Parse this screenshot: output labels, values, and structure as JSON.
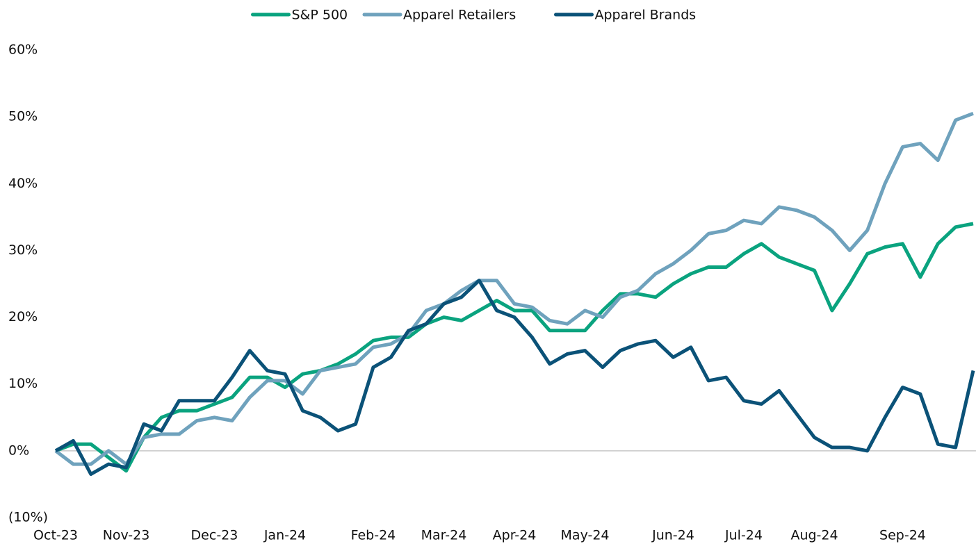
{
  "chart_data": {
    "type": "line",
    "categories": [
      "Oct-23",
      null,
      null,
      null,
      "Nov-23",
      null,
      null,
      null,
      null,
      "Dec-23",
      null,
      null,
      null,
      "Jan-24",
      null,
      null,
      null,
      null,
      "Feb-24",
      null,
      null,
      null,
      "Mar-24",
      null,
      null,
      null,
      "Apr-24",
      null,
      null,
      null,
      "May-24",
      null,
      null,
      null,
      null,
      "Jun-24",
      null,
      null,
      null,
      "Jul-24",
      null,
      null,
      null,
      "Aug-24",
      null,
      null,
      null,
      null,
      "Sep-24",
      null,
      null,
      null,
      null
    ],
    "series": [
      {
        "name": "S&P 500",
        "color": "#0aa37f",
        "values": [
          0,
          1,
          1,
          -1,
          -3,
          2,
          5,
          6,
          6,
          7,
          8,
          11,
          11,
          9.5,
          11.5,
          12,
          13,
          14.5,
          16.5,
          17,
          17,
          19,
          20,
          19.5,
          21,
          22.5,
          21,
          21,
          18,
          18,
          18,
          21,
          23.5,
          23.5,
          23,
          25,
          26.5,
          27.5,
          27.5,
          29.5,
          31,
          29,
          28,
          27,
          21,
          25,
          29.5,
          30.5,
          31,
          26,
          31,
          33.5,
          34
        ]
      },
      {
        "name": "Apparel Retailers",
        "color": "#6fa2bd",
        "values": [
          0,
          -2,
          -2,
          0,
          -2,
          2,
          2.5,
          2.5,
          4.5,
          5,
          4.5,
          8,
          10.5,
          10.5,
          8.5,
          12,
          12.5,
          13,
          15.5,
          16,
          17.5,
          21,
          22,
          24,
          25.5,
          25.5,
          22,
          21.5,
          19.5,
          19,
          21,
          20,
          23,
          24,
          26.5,
          28,
          30,
          32.5,
          33,
          34.5,
          34,
          36.5,
          36,
          35,
          33,
          30,
          33,
          40,
          45.5,
          46,
          43.5,
          49.5,
          50.5
        ]
      },
      {
        "name": "Apparel Brands",
        "color": "#0b5278",
        "values": [
          0,
          1.5,
          -3.5,
          -2,
          -2.5,
          4,
          3,
          7.5,
          7.5,
          7.5,
          11,
          15,
          12,
          11.5,
          6,
          5,
          3,
          4,
          12.5,
          14,
          18,
          19,
          22,
          23,
          25.5,
          21,
          20,
          17,
          13,
          14.5,
          15,
          12.5,
          15,
          16,
          16.5,
          14,
          15.5,
          10.5,
          11,
          7.5,
          7,
          9,
          5.5,
          2,
          0.5,
          0.5,
          0,
          5,
          9.5,
          8.5,
          1,
          0.5,
          12
        ]
      }
    ],
    "ylim": [
      -10,
      60
    ],
    "yticks": [
      {
        "value": -10,
        "label": "(10%)"
      },
      {
        "value": 0,
        "label": "0%"
      },
      {
        "value": 10,
        "label": "10%"
      },
      {
        "value": 20,
        "label": "20%"
      },
      {
        "value": 30,
        "label": "30%"
      },
      {
        "value": 40,
        "label": "40%"
      },
      {
        "value": 50,
        "label": "50%"
      },
      {
        "value": 60,
        "label": "60%"
      }
    ],
    "legend": "top"
  }
}
